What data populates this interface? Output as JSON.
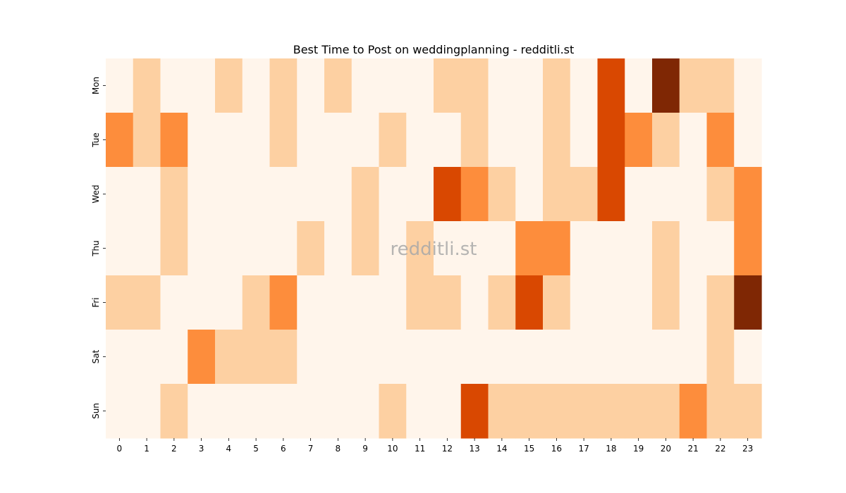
{
  "chart_data": {
    "type": "heatmap",
    "title": "Best Time to Post on weddingplanning - redditli.st",
    "watermark": "redditli.st",
    "xlabel": "",
    "ylabel": "",
    "x_categories": [
      "0",
      "1",
      "2",
      "3",
      "4",
      "5",
      "6",
      "7",
      "8",
      "9",
      "10",
      "11",
      "12",
      "13",
      "14",
      "15",
      "16",
      "17",
      "18",
      "19",
      "20",
      "21",
      "22",
      "23"
    ],
    "y_categories": [
      "Mon",
      "Tue",
      "Wed",
      "Thu",
      "Fri",
      "Sat",
      "Sun"
    ],
    "value_range": [
      0,
      4
    ],
    "colorscale": [
      "#fff5eb",
      "#fdd0a2",
      "#fd8d3c",
      "#d94801",
      "#7f2704"
    ],
    "colorbar": false,
    "values": [
      [
        0,
        1,
        0,
        0,
        1,
        0,
        1,
        0,
        1,
        0,
        0,
        0,
        1,
        1,
        0,
        0,
        1,
        0,
        3,
        0,
        4,
        1,
        1,
        0
      ],
      [
        2,
        1,
        2,
        0,
        0,
        0,
        1,
        0,
        0,
        0,
        1,
        0,
        0,
        1,
        0,
        0,
        1,
        0,
        3,
        2,
        1,
        0,
        2,
        0
      ],
      [
        0,
        0,
        1,
        0,
        0,
        0,
        0,
        0,
        0,
        1,
        0,
        0,
        3,
        2,
        1,
        0,
        1,
        1,
        3,
        0,
        0,
        0,
        1,
        2
      ],
      [
        0,
        0,
        1,
        0,
        0,
        0,
        0,
        1,
        0,
        1,
        0,
        1,
        0,
        0,
        0,
        2,
        2,
        0,
        0,
        0,
        1,
        0,
        0,
        2
      ],
      [
        1,
        1,
        0,
        0,
        0,
        1,
        2,
        0,
        0,
        0,
        0,
        1,
        1,
        0,
        1,
        3,
        1,
        0,
        0,
        0,
        1,
        0,
        1,
        4
      ],
      [
        0,
        0,
        0,
        2,
        1,
        1,
        1,
        0,
        0,
        0,
        0,
        0,
        0,
        0,
        0,
        0,
        0,
        0,
        0,
        0,
        0,
        0,
        1,
        0
      ],
      [
        0,
        0,
        1,
        0,
        0,
        0,
        0,
        0,
        0,
        0,
        1,
        0,
        0,
        3,
        1,
        1,
        1,
        1,
        1,
        1,
        1,
        2,
        1,
        1
      ]
    ]
  }
}
